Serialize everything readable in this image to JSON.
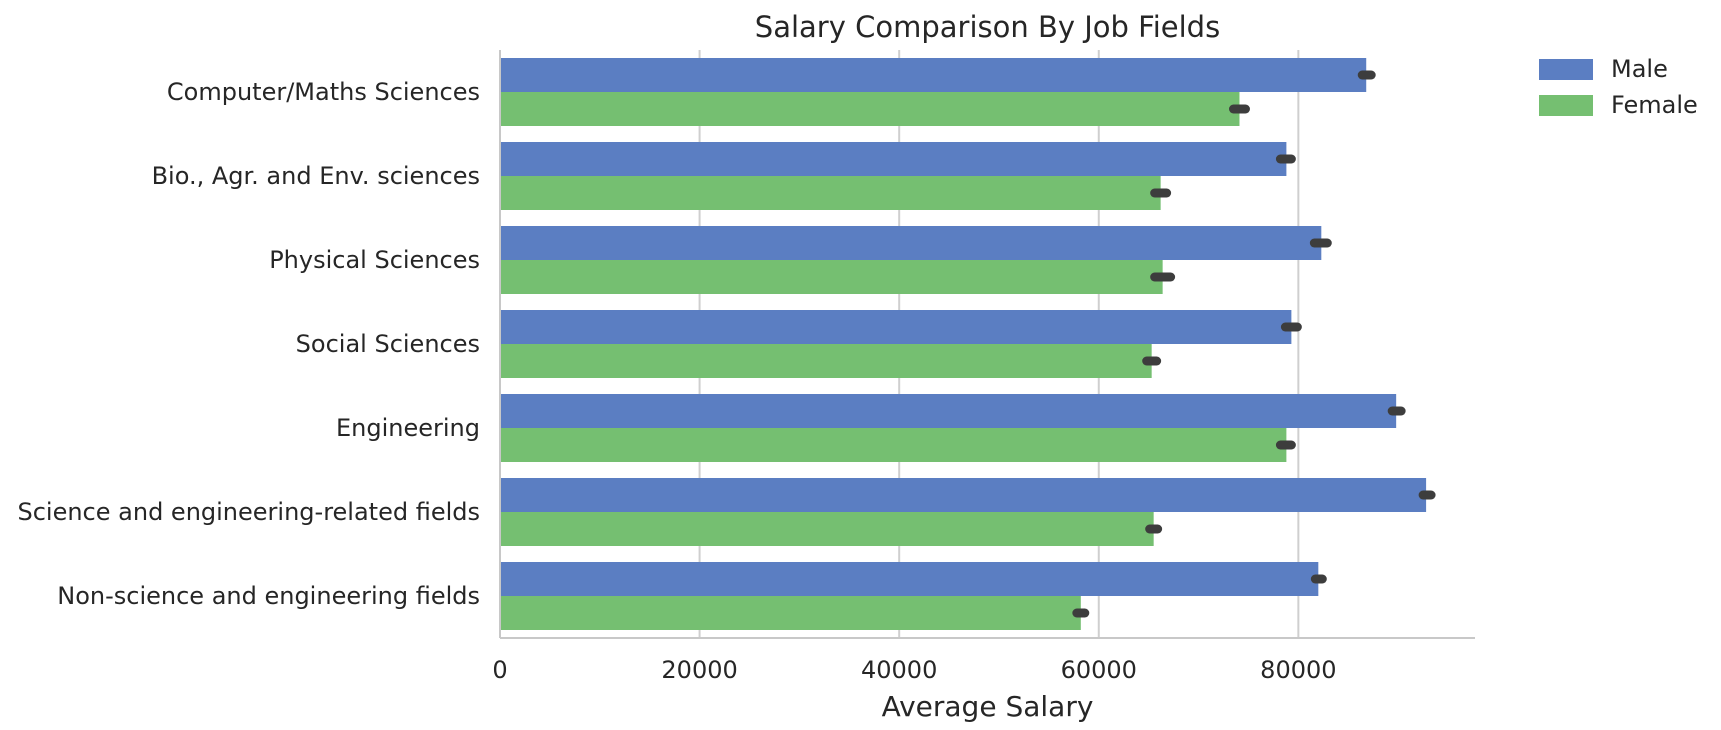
{
  "chart_data": {
    "type": "bar",
    "orientation": "horizontal",
    "title": "Salary Comparison By Job Fields",
    "xlabel": "Average Salary",
    "ylabel": "",
    "xlim": [
      0,
      97700
    ],
    "xticks": [
      0,
      20000,
      40000,
      60000,
      80000
    ],
    "xtick_labels": [
      "0",
      "20000",
      "40000",
      "60000",
      "80000"
    ],
    "grid": "vertical",
    "legend_position": "outside-top-right",
    "categories": [
      "Computer/Maths Sciences",
      "Bio., Agr. and Env. sciences",
      "Physical Sciences",
      "Social Sciences",
      "Engineering",
      "Science and engineering-related fields",
      "Non-science and engineering fields"
    ],
    "series": [
      {
        "name": "Male",
        "color": "#5b7ec2",
        "values": [
          86800,
          78800,
          82300,
          79300,
          89800,
          92800,
          82000
        ],
        "error_low": [
          86400,
          78200,
          81600,
          78700,
          89400,
          92500,
          81700
        ],
        "error_high": [
          87300,
          79300,
          82900,
          79900,
          90300,
          93300,
          82400
        ]
      },
      {
        "name": "Female",
        "color": "#75bf71",
        "values": [
          74100,
          66200,
          66400,
          65300,
          78800,
          65500,
          58200
        ],
        "error_low": [
          73500,
          65600,
          65600,
          64800,
          78200,
          65100,
          57800
        ],
        "error_high": [
          74700,
          66800,
          67200,
          65800,
          79300,
          65900,
          58600
        ]
      }
    ],
    "error_color": "#3d3d3d"
  }
}
